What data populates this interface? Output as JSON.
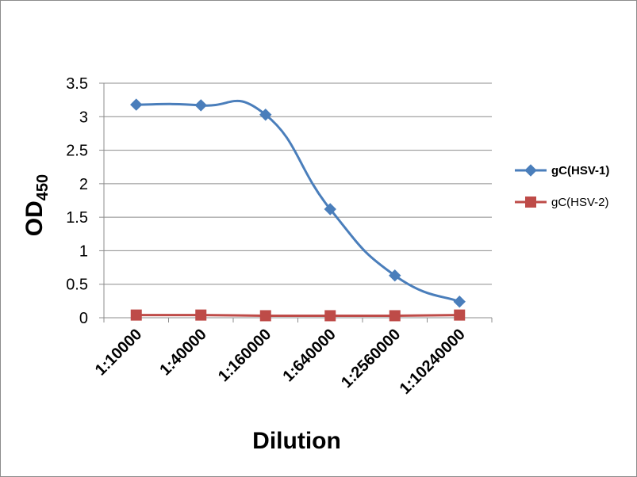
{
  "chart_data": {
    "type": "line",
    "categories": [
      "1:10000",
      "1:40000",
      "1:160000",
      "1:640000",
      "1:2560000",
      "1:10240000"
    ],
    "series": [
      {
        "name": "gC(HSV-1)",
        "values": [
          3.18,
          3.17,
          3.03,
          1.62,
          0.63,
          0.24
        ],
        "color": "#4a7ebb",
        "marker": "diamond",
        "bold_label": true
      },
      {
        "name": "gC(HSV-2)",
        "values": [
          0.04,
          0.04,
          0.03,
          0.03,
          0.03,
          0.04
        ],
        "color": "#be4b48",
        "marker": "square",
        "bold_label": false
      }
    ],
    "xlabel": "Dilution",
    "ylabel": "OD",
    "ylabel_subscript": "450",
    "ylim": [
      0,
      3.5
    ],
    "yticks": [
      0,
      0.5,
      1,
      1.5,
      2,
      2.5,
      3,
      3.5
    ],
    "ytick_labels": [
      "0",
      "0.5",
      "1",
      "1.5",
      "2",
      "2.5",
      "3",
      "3.5"
    ],
    "grid": true,
    "legend": "right"
  }
}
